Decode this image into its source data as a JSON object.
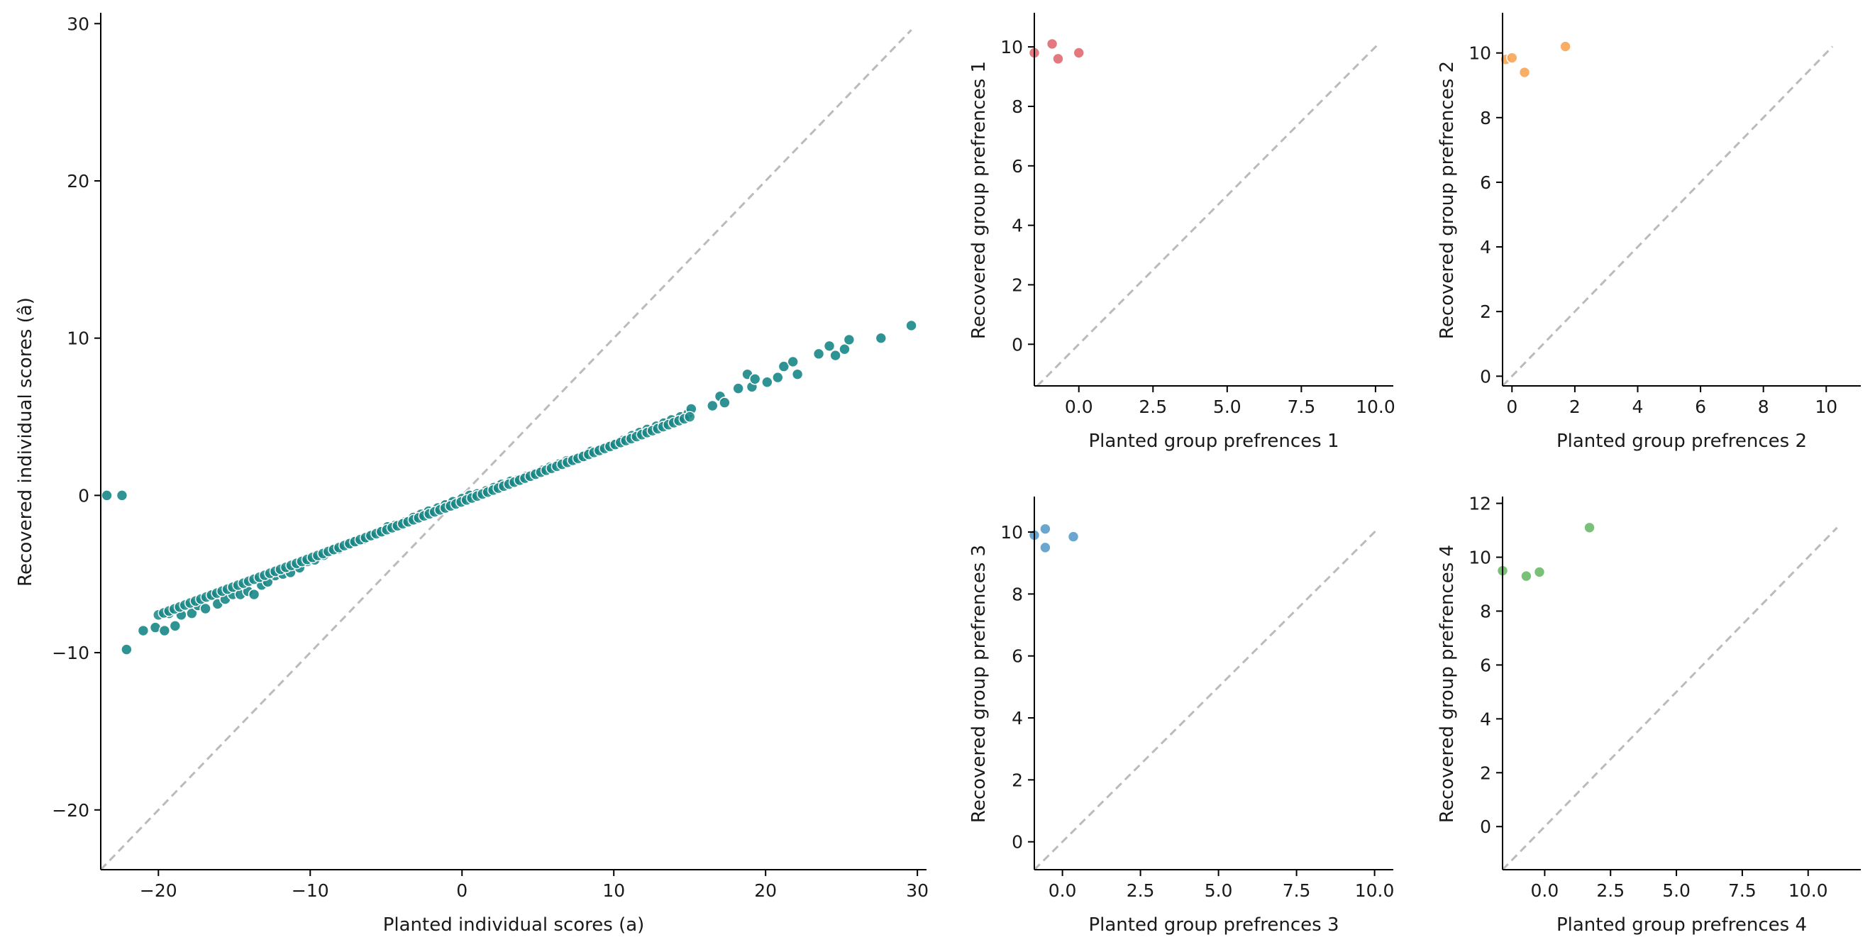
{
  "chart_data": [
    {
      "id": "main",
      "type": "scatter",
      "xlabel": "Planted individual scores (a)",
      "ylabel": "Recovered individual scores (â)",
      "xlim": [
        -23.8,
        30.6
      ],
      "ylim": [
        -23.8,
        30.6
      ],
      "xticks": [
        -20,
        -10,
        0,
        10,
        20,
        30
      ],
      "yticks": [
        -20,
        -10,
        0,
        10,
        20,
        30
      ],
      "point_color": "#1a8787",
      "identity_line": {
        "from": -23.8,
        "to": 29.6,
        "color": "#bbbbbb",
        "style": "dashed"
      },
      "approx_trend": {
        "slope": 0.36,
        "intercept": -0.4,
        "x_range": [
          -20,
          15
        ],
        "note_free": true
      },
      "points": [
        [
          -23.4,
          0.0
        ],
        [
          -22.4,
          0.0
        ],
        [
          -22.1,
          -9.8
        ],
        [
          -21.0,
          -8.6
        ],
        [
          -20.2,
          -8.4
        ],
        [
          -19.6,
          -8.6
        ],
        [
          -19.3,
          -7.5
        ],
        [
          -18.9,
          -8.3
        ],
        [
          -18.5,
          -7.6
        ],
        [
          -17.8,
          -7.5
        ],
        [
          -17.4,
          -7.0
        ],
        [
          -16.9,
          -7.2
        ],
        [
          -16.4,
          -6.3
        ],
        [
          -16.1,
          -6.9
        ],
        [
          -15.6,
          -6.6
        ],
        [
          -15.1,
          -6.3
        ],
        [
          -14.6,
          -6.3
        ],
        [
          -14.1,
          -6.1
        ],
        [
          -13.7,
          -6.3
        ],
        [
          -13.2,
          -5.7
        ],
        [
          -12.8,
          -5.5
        ],
        [
          -12.3,
          -5.1
        ],
        [
          -11.8,
          -5.0
        ],
        [
          -11.3,
          -4.9
        ],
        [
          -10.7,
          -4.6
        ],
        [
          -10.2,
          -4.2
        ],
        [
          -9.7,
          -4.1
        ],
        [
          -9.1,
          -3.8
        ],
        [
          -8.6,
          -3.5
        ],
        [
          -8.1,
          -3.4
        ],
        [
          -7.5,
          -3.1
        ],
        [
          -7.0,
          -2.9
        ],
        [
          -6.5,
          -2.8
        ],
        [
          -6.0,
          -2.5
        ],
        [
          -5.4,
          -2.3
        ],
        [
          -4.9,
          -2.0
        ],
        [
          -4.4,
          -1.9
        ],
        [
          -3.8,
          -1.7
        ],
        [
          -3.2,
          -1.4
        ],
        [
          -2.7,
          -1.2
        ],
        [
          -2.2,
          -1.0
        ],
        [
          -1.6,
          -0.8
        ],
        [
          -1.1,
          -0.6
        ],
        [
          -0.6,
          -0.4
        ],
        [
          0.0,
          -0.2
        ],
        [
          0.5,
          0.0
        ],
        [
          1.0,
          0.1
        ],
        [
          1.6,
          0.3
        ],
        [
          2.1,
          0.5
        ],
        [
          2.6,
          0.7
        ],
        [
          3.2,
          0.9
        ],
        [
          3.7,
          1.0
        ],
        [
          4.2,
          1.2
        ],
        [
          4.8,
          1.4
        ],
        [
          5.3,
          1.6
        ],
        [
          5.8,
          1.8
        ],
        [
          6.4,
          2.0
        ],
        [
          6.9,
          2.2
        ],
        [
          7.4,
          2.3
        ],
        [
          8.0,
          2.5
        ],
        [
          8.5,
          2.8
        ],
        [
          9.0,
          2.9
        ],
        [
          9.6,
          3.1
        ],
        [
          10.1,
          3.3
        ],
        [
          10.6,
          3.5
        ],
        [
          11.2,
          3.8
        ],
        [
          11.7,
          4.0
        ],
        [
          12.2,
          4.2
        ],
        [
          12.8,
          4.4
        ],
        [
          13.3,
          4.6
        ],
        [
          13.8,
          4.8
        ],
        [
          14.4,
          5.0
        ],
        [
          14.9,
          5.2
        ],
        [
          15.1,
          5.5
        ],
        [
          16.5,
          5.7
        ],
        [
          17.0,
          6.3
        ],
        [
          17.3,
          5.9
        ],
        [
          18.2,
          6.8
        ],
        [
          18.8,
          7.7
        ],
        [
          19.1,
          6.9
        ],
        [
          19.3,
          7.4
        ],
        [
          20.1,
          7.2
        ],
        [
          20.8,
          7.5
        ],
        [
          21.2,
          8.2
        ],
        [
          21.8,
          8.5
        ],
        [
          22.1,
          7.7
        ],
        [
          23.5,
          9.0
        ],
        [
          24.2,
          9.5
        ],
        [
          24.6,
          8.9
        ],
        [
          25.2,
          9.3
        ],
        [
          25.5,
          9.9
        ],
        [
          27.6,
          10.0
        ],
        [
          29.6,
          10.8
        ]
      ]
    },
    {
      "id": "group1",
      "type": "scatter",
      "xlabel": "Planted group prefrences 1",
      "ylabel": "Recovered group prefrences 1",
      "xlim": [
        -1.5,
        10.6
      ],
      "ylim": [
        -1.4,
        11.1
      ],
      "xticks": [
        0.0,
        2.5,
        5.0,
        7.5,
        10.0
      ],
      "xtick_labels": [
        "0.0",
        "2.5",
        "5.0",
        "7.5",
        "10.0"
      ],
      "yticks": [
        0,
        2,
        4,
        6,
        8,
        10
      ],
      "point_color": "#e06a70",
      "identity_line": {
        "from": -1.4,
        "to": 10.1,
        "color": "#bbbbbb",
        "style": "dashed"
      },
      "points": [
        [
          -1.5,
          9.8
        ],
        [
          -0.9,
          10.1
        ],
        [
          -0.7,
          9.6
        ],
        [
          0.0,
          9.8
        ]
      ]
    },
    {
      "id": "group2",
      "type": "scatter",
      "xlabel": "Planted group prefrences 2",
      "ylabel": "Recovered group prefrences 2",
      "xlim": [
        -0.3,
        11.1
      ],
      "ylim": [
        -0.3,
        11.2
      ],
      "xticks": [
        0,
        2,
        4,
        6,
        8,
        10
      ],
      "yticks": [
        0,
        2,
        4,
        6,
        8,
        10
      ],
      "point_color": "#f8a558",
      "identity_line": {
        "from": -0.3,
        "to": 10.2,
        "color": "#bbbbbb",
        "style": "dashed"
      },
      "points": [
        [
          -0.2,
          9.8
        ],
        [
          0.0,
          9.85
        ],
        [
          0.4,
          9.4
        ],
        [
          1.7,
          10.2
        ]
      ]
    },
    {
      "id": "group3",
      "type": "scatter",
      "xlabel": "Planted group prefrences 3",
      "ylabel": "Recovered group prefrences 3",
      "xlim": [
        -0.9,
        10.6
      ],
      "ylim": [
        -0.9,
        11.1
      ],
      "xticks": [
        0.0,
        2.5,
        5.0,
        7.5,
        10.0
      ],
      "xtick_labels": [
        "0.0",
        "2.5",
        "5.0",
        "7.5",
        "10.0"
      ],
      "yticks": [
        0,
        2,
        4,
        6,
        8,
        10
      ],
      "point_color": "#5b9ccb",
      "identity_line": {
        "from": -0.9,
        "to": 10.1,
        "color": "#bbbbbb",
        "style": "dashed"
      },
      "points": [
        [
          -0.9,
          9.9
        ],
        [
          -0.55,
          10.1
        ],
        [
          -0.55,
          9.5
        ],
        [
          0.35,
          9.85
        ]
      ]
    },
    {
      "id": "group4",
      "type": "scatter",
      "xlabel": "Planted group prefrences 4",
      "ylabel": "Recovered group prefrences 4",
      "xlim": [
        -1.6,
        12.0
      ],
      "ylim": [
        -1.6,
        12.2
      ],
      "xticks": [
        0.0,
        2.5,
        5.0,
        7.5,
        10.0
      ],
      "xtick_labels": [
        "0.0",
        "2.5",
        "5.0",
        "7.5",
        "10.0"
      ],
      "yticks": [
        0,
        2,
        4,
        6,
        8,
        10,
        12
      ],
      "point_color": "#6cb96a",
      "identity_line": {
        "from": -1.6,
        "to": 11.1,
        "color": "#bbbbbb",
        "style": "dashed"
      },
      "points": [
        [
          -1.6,
          9.5
        ],
        [
          -0.7,
          9.3
        ],
        [
          -0.2,
          9.45
        ],
        [
          1.7,
          11.1
        ]
      ]
    }
  ]
}
